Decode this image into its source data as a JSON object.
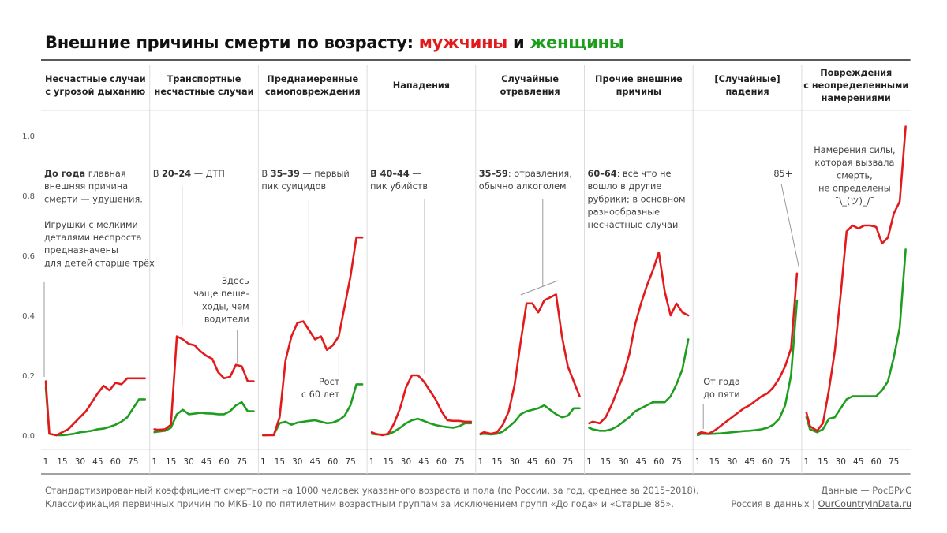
{
  "title": {
    "prefix": "Внешние причины смерти по возрасту: ",
    "men": "мужчины",
    "and": " и ",
    "women": "женщины"
  },
  "colors": {
    "men": "#e31a1c",
    "women": "#1e9e1e",
    "annotation_line": "#9a9a9a"
  },
  "footer": {
    "line1": "Стандартизированный коэффициент смертности на 1000 человек указанного возраста и пола (по России, за год, среднее за 2015–2018).",
    "line2": "Классификация первичных причин по МКБ-10 по пятилетним возрастным группам за исключением групп «До года» и «Старше 85».",
    "source": "Данные — РосБРиС",
    "site_prefix": "Россия в данных | ",
    "site_link": "OurCountryInData.ru"
  },
  "chart_data": {
    "type": "line",
    "x": [
      1,
      4,
      10,
      15,
      20,
      25,
      30,
      35,
      40,
      45,
      50,
      55,
      60,
      65,
      70,
      75,
      80,
      85
    ],
    "x_tick_labels": [
      "1",
      "15",
      "30",
      "45",
      "60",
      "75"
    ],
    "x_ticks": [
      1,
      15,
      30,
      45,
      60,
      75
    ],
    "y_tick_labels": [
      "0,0",
      "0,2",
      "0,4",
      "0,6",
      "0,8",
      "1,0"
    ],
    "ylim": [
      0,
      1.0
    ],
    "grid": false,
    "panels": [
      {
        "header": [
          "Несчастные случаи",
          "с угрозой дыханию"
        ],
        "annotations": [
          [
            {
              "b": "До года"
            },
            {
              "t": " главная"
            }
          ],
          [
            {
              "t": "внешняя причина"
            }
          ],
          [
            {
              "t": "смерти — удушения."
            }
          ],
          [
            {
              "t": ""
            }
          ],
          [
            {
              "t": "Игрушки с мелкими"
            }
          ],
          [
            {
              "t": "деталями неспроста"
            }
          ],
          [
            {
              "t": "предназначены"
            }
          ],
          [
            {
              "t": "для детей старше трёх"
            }
          ]
        ],
        "men": [
          0.18,
          0.005,
          0.0,
          0.01,
          0.02,
          0.04,
          0.06,
          0.08,
          0.11,
          0.14,
          0.165,
          0.15,
          0.175,
          0.17,
          0.19,
          0.19,
          0.19,
          0.19
        ],
        "women": [
          0.16,
          0.005,
          0.0,
          0.0,
          0.002,
          0.005,
          0.01,
          0.012,
          0.015,
          0.02,
          0.022,
          0.028,
          0.035,
          0.045,
          0.06,
          0.09,
          0.12,
          0.12
        ]
      },
      {
        "header": [
          "Транспортные",
          "несчастные случаи"
        ],
        "annotations": [
          [
            {
              "t": "В "
            },
            {
              "b": "20–24"
            },
            {
              "t": " — ДТП"
            }
          ]
        ],
        "annotations2": [
          [
            {
              "t": "Здесь"
            }
          ],
          [
            {
              "t": "чаще пеше-"
            }
          ],
          [
            {
              "t": "ходы, чем"
            }
          ],
          [
            {
              "t": "водители"
            }
          ]
        ],
        "men": [
          0.02,
          0.018,
          0.02,
          0.035,
          0.33,
          0.32,
          0.305,
          0.3,
          0.28,
          0.265,
          0.255,
          0.21,
          0.19,
          0.195,
          0.235,
          0.23,
          0.18,
          0.18
        ],
        "women": [
          0.01,
          0.012,
          0.015,
          0.025,
          0.07,
          0.085,
          0.07,
          0.072,
          0.075,
          0.073,
          0.072,
          0.07,
          0.07,
          0.08,
          0.1,
          0.11,
          0.08,
          0.08
        ]
      },
      {
        "header": [
          "Преднамеренные",
          "самоповреждения"
        ],
        "annotations": [
          [
            {
              "t": "В "
            },
            {
              "b": "35–39"
            },
            {
              "t": " — первый"
            }
          ],
          [
            {
              "t": "пик суицидов"
            }
          ]
        ],
        "annotations2": [
          [
            {
              "t": "Рост"
            }
          ],
          [
            {
              "t": "с 60 лет"
            }
          ]
        ],
        "men": [
          0.0,
          0.0,
          0.0,
          0.06,
          0.25,
          0.33,
          0.375,
          0.38,
          0.35,
          0.32,
          0.33,
          0.285,
          0.3,
          0.33,
          0.43,
          0.53,
          0.66,
          0.66
        ],
        "women": [
          0.0,
          0.0,
          0.002,
          0.04,
          0.045,
          0.035,
          0.042,
          0.045,
          0.048,
          0.05,
          0.045,
          0.04,
          0.042,
          0.05,
          0.065,
          0.1,
          0.17,
          0.17
        ]
      },
      {
        "header": [
          "Нападения"
        ],
        "annotations": [
          [
            {
              "b": "В 40–44"
            },
            {
              "t": " —"
            }
          ],
          [
            {
              "t": "пик убийств"
            }
          ]
        ],
        "men": [
          0.01,
          0.005,
          0.0,
          0.005,
          0.04,
          0.09,
          0.16,
          0.2,
          0.2,
          0.18,
          0.15,
          0.12,
          0.08,
          0.05,
          0.048,
          0.048,
          0.045,
          0.045
        ],
        "women": [
          0.005,
          0.003,
          0.002,
          0.003,
          0.012,
          0.025,
          0.04,
          0.05,
          0.055,
          0.048,
          0.04,
          0.034,
          0.03,
          0.027,
          0.025,
          0.03,
          0.04,
          0.04
        ]
      },
      {
        "header": [
          "Случайные",
          "отравления"
        ],
        "annotations": [
          [
            {
              "b": "35–59"
            },
            {
              "t": ": отравления,"
            }
          ],
          [
            {
              "t": "обычно алкоголем"
            }
          ]
        ],
        "men": [
          0.005,
          0.01,
          0.005,
          0.01,
          0.035,
          0.08,
          0.17,
          0.31,
          0.44,
          0.44,
          0.41,
          0.45,
          0.46,
          0.47,
          0.33,
          0.23,
          0.18,
          0.13
        ],
        "women": [
          0.003,
          0.005,
          0.003,
          0.005,
          0.012,
          0.028,
          0.045,
          0.07,
          0.08,
          0.085,
          0.09,
          0.1,
          0.085,
          0.07,
          0.06,
          0.065,
          0.09,
          0.09
        ]
      },
      {
        "header": [
          "Прочие внешние",
          "причины"
        ],
        "annotations": [
          [
            {
              "b": "60–64"
            },
            {
              "t": ": всё что не"
            }
          ],
          [
            {
              "t": "вошло в другие"
            }
          ],
          [
            {
              "t": "рубрики; в основном"
            }
          ],
          [
            {
              "t": "разнообразные"
            }
          ],
          [
            {
              "t": "несчастные случаи"
            }
          ]
        ],
        "men": [
          0.04,
          0.045,
          0.04,
          0.06,
          0.1,
          0.15,
          0.2,
          0.27,
          0.37,
          0.44,
          0.5,
          0.55,
          0.61,
          0.48,
          0.4,
          0.44,
          0.41,
          0.4
        ],
        "women": [
          0.025,
          0.02,
          0.015,
          0.015,
          0.02,
          0.03,
          0.045,
          0.06,
          0.08,
          0.09,
          0.1,
          0.11,
          0.11,
          0.11,
          0.13,
          0.17,
          0.22,
          0.32
        ]
      },
      {
        "header": [
          "[Случайные]",
          "падения"
        ],
        "annotations": [],
        "annotations2": [
          [
            {
              "t": "От года"
            }
          ],
          [
            {
              "t": "до пяти"
            }
          ]
        ],
        "annotations3": [
          [
            {
              "t": "85+"
            }
          ]
        ],
        "men": [
          0.005,
          0.01,
          0.005,
          0.015,
          0.03,
          0.045,
          0.06,
          0.075,
          0.09,
          0.1,
          0.115,
          0.13,
          0.14,
          0.16,
          0.19,
          0.23,
          0.29,
          0.54
        ],
        "women": [
          0.0,
          0.005,
          0.004,
          0.005,
          0.006,
          0.008,
          0.01,
          0.012,
          0.014,
          0.015,
          0.017,
          0.02,
          0.025,
          0.035,
          0.055,
          0.1,
          0.2,
          0.45
        ]
      },
      {
        "header": [
          "Повреждения",
          "с неопределенными",
          "намерениями"
        ],
        "annotations": [
          [
            {
              "t": "Намерения силы,"
            }
          ],
          [
            {
              "t": "которая вызвала"
            }
          ],
          [
            {
              "t": "смерть,"
            }
          ],
          [
            {
              "t": "не определены"
            }
          ],
          [
            {
              "t": "¯\\_(ツ)_/¯"
            }
          ]
        ],
        "men": [
          0.075,
          0.03,
          0.015,
          0.04,
          0.15,
          0.28,
          0.47,
          0.68,
          0.7,
          0.69,
          0.7,
          0.7,
          0.695,
          0.64,
          0.66,
          0.74,
          0.78,
          1.03
        ],
        "women": [
          0.06,
          0.02,
          0.01,
          0.02,
          0.055,
          0.06,
          0.09,
          0.12,
          0.13,
          0.13,
          0.13,
          0.13,
          0.13,
          0.15,
          0.18,
          0.26,
          0.36,
          0.62
        ]
      }
    ]
  }
}
